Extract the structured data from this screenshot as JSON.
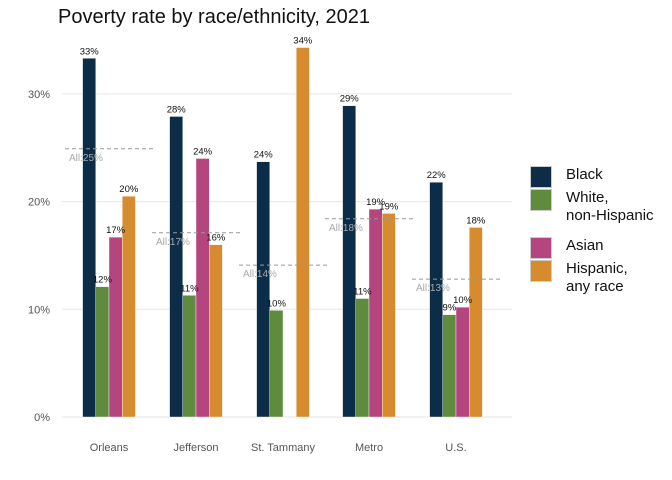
{
  "chart_data": {
    "type": "bar",
    "title": "Poverty rate by race/ethnicity, 2021",
    "xlabel": "",
    "ylabel": "",
    "ylim": [
      0,
      0.35
    ],
    "y_ticks": [
      0,
      0.1,
      0.2,
      0.3
    ],
    "y_tick_labels": [
      "0%",
      "10%",
      "20%",
      "30%"
    ],
    "grid": true,
    "legend_position": "right",
    "categories": [
      "Orleans",
      "Jefferson",
      "St. Tammany",
      "Metro",
      "U.S."
    ],
    "series": [
      {
        "name": "Black",
        "color": "#0c2d48",
        "values": [
          0.333,
          0.279,
          0.237,
          0.289,
          0.218
        ],
        "labels": [
          "33%",
          "28%",
          "24%",
          "29%",
          "22%"
        ]
      },
      {
        "name": "White,\nnon-Hispanic",
        "color": "#5e8b3d",
        "values": [
          0.121,
          0.113,
          0.099,
          0.11,
          0.095
        ],
        "labels": [
          "12%",
          "11%",
          "10%",
          "11%",
          "9%"
        ]
      },
      {
        "name": "Asian",
        "color": "#b5457e",
        "values": [
          0.167,
          0.24,
          null,
          0.193,
          0.102
        ],
        "labels": [
          "17%",
          "24%",
          "",
          "19%",
          "10%"
        ]
      },
      {
        "name": "Hispanic,\nany race",
        "color": "#d68b2e",
        "values": [
          0.205,
          0.16,
          0.343,
          0.189,
          0.176
        ],
        "labels": [
          "20%",
          "16%",
          "34%",
          "19%",
          "18%"
        ]
      }
    ],
    "all_reference": {
      "values": [
        0.249,
        0.171,
        0.141,
        0.184,
        0.128
      ],
      "labels": [
        "All:25%",
        "All:17%",
        "All:14%",
        "All:18%",
        "All:13%"
      ]
    }
  }
}
